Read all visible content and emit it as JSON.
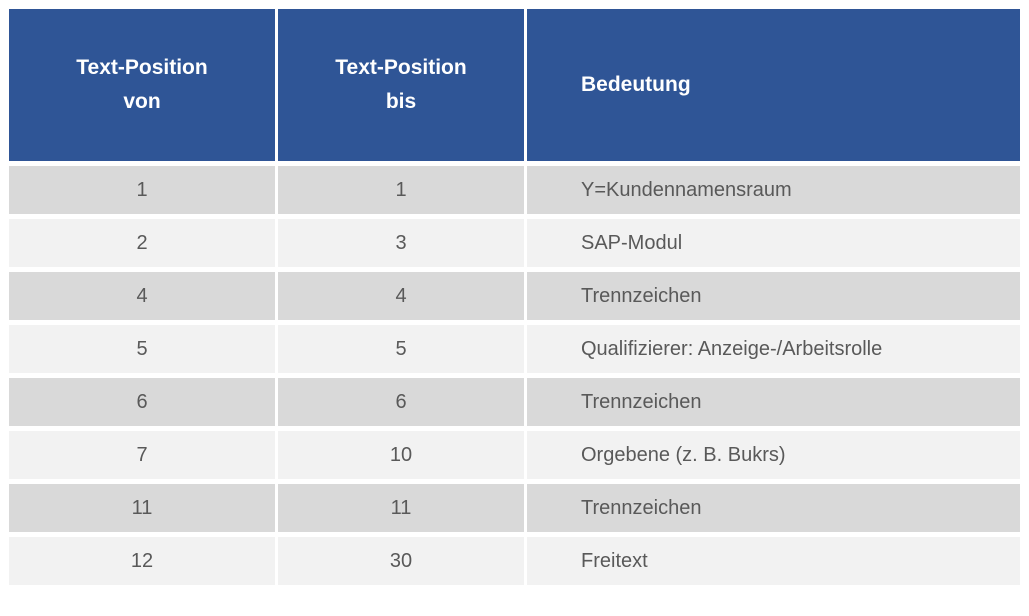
{
  "colors": {
    "header_bg": "#2f5596",
    "header_text": "#ffffff",
    "row_odd_bg": "#d9d9d9",
    "row_even_bg": "#f2f2f2",
    "body_text": "#595959",
    "page_bg": "#ffffff"
  },
  "table": {
    "columns": [
      {
        "line1": "Text-Position",
        "line2": "von"
      },
      {
        "line1": "Text-Position",
        "line2": "bis"
      },
      {
        "line1": "Bedeutung",
        "line2": ""
      }
    ],
    "rows": [
      {
        "von": "1",
        "bis": "1",
        "bedeutung": "Y=Kundennamensraum"
      },
      {
        "von": "2",
        "bis": "3",
        "bedeutung": "SAP-Modul"
      },
      {
        "von": "4",
        "bis": "4",
        "bedeutung": "Trennzeichen"
      },
      {
        "von": "5",
        "bis": "5",
        "bedeutung": "Qualifizierer: Anzeige-/Arbeitsrolle"
      },
      {
        "von": "6",
        "bis": "6",
        "bedeutung": "Trennzeichen"
      },
      {
        "von": "7",
        "bis": "10",
        "bedeutung": "Orgebene (z. B. Bukrs)"
      },
      {
        "von": "11",
        "bis": "11",
        "bedeutung": "Trennzeichen"
      },
      {
        "von": "12",
        "bis": "30",
        "bedeutung": "Freitext"
      }
    ]
  }
}
